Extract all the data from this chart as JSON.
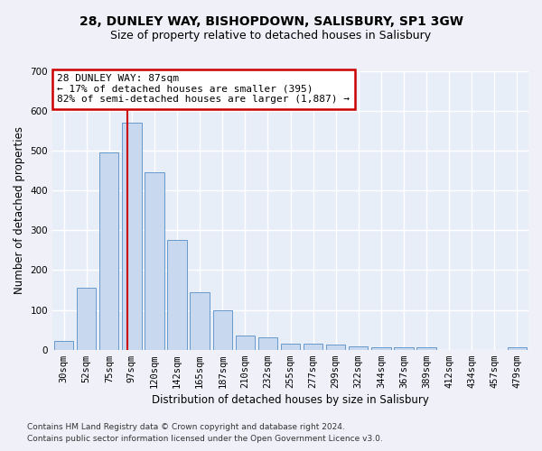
{
  "title1": "28, DUNLEY WAY, BISHOPDOWN, SALISBURY, SP1 3GW",
  "title2": "Size of property relative to detached houses in Salisbury",
  "xlabel": "Distribution of detached houses by size in Salisbury",
  "ylabel": "Number of detached properties",
  "footer1": "Contains HM Land Registry data © Crown copyright and database right 2024.",
  "footer2": "Contains public sector information licensed under the Open Government Licence v3.0.",
  "annotation_line1": "28 DUNLEY WAY: 87sqm",
  "annotation_line2": "← 17% of detached houses are smaller (395)",
  "annotation_line3": "82% of semi-detached houses are larger (1,887) →",
  "bar_color": "#c8d8ee",
  "bar_edge_color": "#6699cc",
  "vline_color": "#cc0000",
  "annotation_box_edge": "#cc0000",
  "background_color": "#e8eef8",
  "grid_color": "#ffffff",
  "categories": [
    "30sqm",
    "52sqm",
    "75sqm",
    "97sqm",
    "120sqm",
    "142sqm",
    "165sqm",
    "187sqm",
    "210sqm",
    "232sqm",
    "255sqm",
    "277sqm",
    "299sqm",
    "322sqm",
    "344sqm",
    "367sqm",
    "389sqm",
    "412sqm",
    "434sqm",
    "457sqm",
    "479sqm"
  ],
  "values": [
    22,
    155,
    495,
    570,
    445,
    275,
    145,
    98,
    35,
    32,
    16,
    15,
    13,
    8,
    7,
    5,
    5,
    0,
    0,
    0,
    7
  ],
  "vline_x": 2.82,
  "ylim": [
    0,
    700
  ],
  "yticks": [
    0,
    100,
    200,
    300,
    400,
    500,
    600,
    700
  ],
  "title1_fontsize": 10,
  "title2_fontsize": 9,
  "ann_fontsize": 8,
  "ylabel_fontsize": 8.5,
  "xlabel_fontsize": 8.5,
  "tick_fontsize": 7.5,
  "footer_fontsize": 6.5
}
